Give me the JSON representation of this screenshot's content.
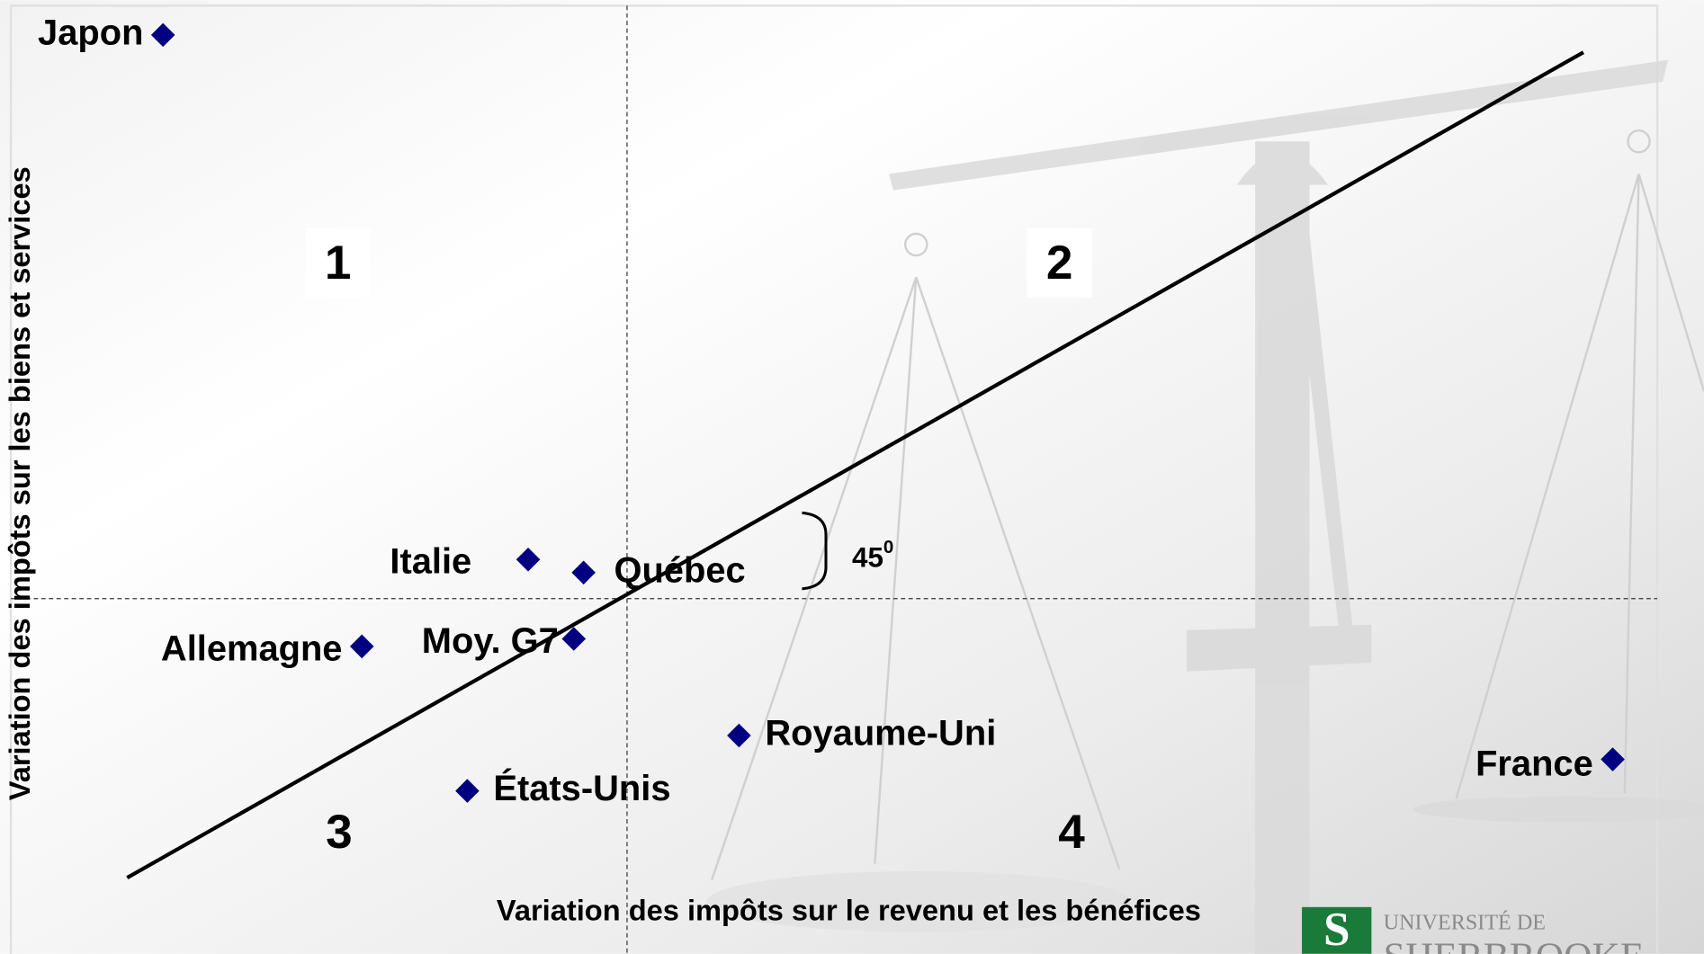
{
  "chart_data": {
    "type": "scatter",
    "x_label": "Variation des impôts sur le revenu et les bénéfices",
    "y_label": "Variation des impôts sur les biens et services",
    "points": [
      {
        "label": "Japon",
        "x": -4.27,
        "y": 5.19
      },
      {
        "label": "Italie",
        "x": -0.91,
        "y": 0.36
      },
      {
        "label": "Québec",
        "x": -0.4,
        "y": 0.24
      },
      {
        "label": "Allemagne",
        "x": -2.44,
        "y": -0.44
      },
      {
        "label": "Moy. G7",
        "x": -0.49,
        "y": -0.37
      },
      {
        "label": "Royaume-Uni",
        "x": 1.03,
        "y": -1.26
      },
      {
        "label": "États-Unis",
        "x": -1.47,
        "y": -1.77
      },
      {
        "label": "France",
        "x": 9.07,
        "y": -1.48
      }
    ],
    "color": "#000080",
    "xlim": [
      -5.7,
      9.5
    ],
    "ylim": [
      -3.3,
      5.5
    ],
    "reference_line": {
      "x": [
        -4.6,
        8.8
      ],
      "y": [
        -2.57,
        5.03
      ]
    },
    "angle_label": {
      "text": "45",
      "superscript": "0"
    },
    "quadrants": [
      "1",
      "2",
      "3",
      "4"
    ],
    "logo": {
      "line1": "UNIVERSITÉ DE",
      "line2": "SHERBROOKE"
    }
  }
}
